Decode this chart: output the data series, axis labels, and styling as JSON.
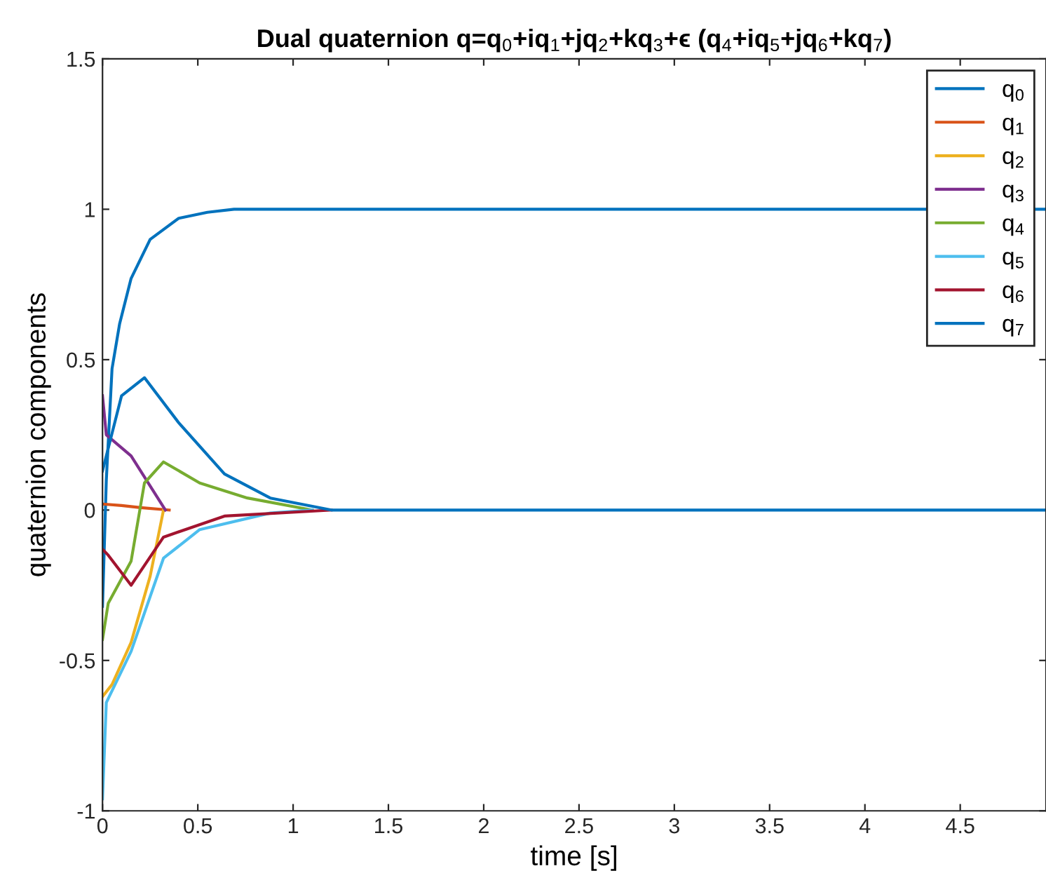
{
  "chart_data": {
    "type": "line",
    "title": "Dual quaternion q=q$_{0}$+iq$_{1}$+jq$_{2}$+kq$_{3}$+ϵ (q$_{4}$+iq$_{5}$+jq$_{6}$+kq$_{7}$)",
    "xlabel": "time [s]",
    "ylabel": "quaternion components",
    "xlim": [
      0,
      4.95
    ],
    "ylim": [
      -1,
      1.5
    ],
    "xticks": [
      0,
      0.5,
      1,
      1.5,
      2,
      2.5,
      3,
      3.5,
      4,
      4.5
    ],
    "yticks": [
      -1,
      -0.5,
      0,
      0.5,
      1,
      1.5
    ],
    "grid": false,
    "legend": "top right",
    "marker": "none",
    "line_style": "solid",
    "series": [
      {
        "name": "q$_{0}$",
        "color": "#0072bd",
        "x": [
          0,
          0.02,
          0.05,
          0.09,
          0.15,
          0.25,
          0.4,
          0.55,
          0.69,
          1,
          2,
          3,
          4,
          4.95
        ],
        "values": [
          -0.32,
          0.1,
          0.47,
          0.62,
          0.77,
          0.9,
          0.97,
          0.99,
          1,
          1,
          1,
          1,
          1,
          1
        ]
      },
      {
        "name": "q$_{1}$",
        "color": "#d95319",
        "x": [
          0,
          0.1,
          0.2,
          0.35
        ],
        "values": [
          0.02,
          0.015,
          0.008,
          0
        ]
      },
      {
        "name": "q$_{2}$",
        "color": "#edb120",
        "x": [
          0,
          0.05,
          0.15,
          0.25,
          0.32
        ],
        "values": [
          -0.62,
          -0.58,
          -0.44,
          -0.22,
          0
        ]
      },
      {
        "name": "q$_{3}$",
        "color": "#7e2f8e",
        "x": [
          0,
          0.02,
          0.15,
          0.33
        ],
        "values": [
          0.38,
          0.25,
          0.18,
          0
        ]
      },
      {
        "name": "q$_{4}$",
        "color": "#77ac30",
        "x": [
          0,
          0.03,
          0.15,
          0.22,
          0.32,
          0.51,
          0.76,
          1.1
        ],
        "values": [
          -0.43,
          -0.31,
          -0.17,
          0.09,
          0.16,
          0.09,
          0.04,
          0
        ]
      },
      {
        "name": "q$_{5}$",
        "color": "#4dbeee",
        "x": [
          0,
          0.02,
          0.15,
          0.32,
          0.51,
          0.88,
          1.1
        ],
        "values": [
          -0.96,
          -0.64,
          -0.47,
          -0.16,
          -0.065,
          -0.01,
          0
        ]
      },
      {
        "name": "q$_{6}$",
        "color": "#a2142f",
        "x": [
          0,
          0.03,
          0.15,
          0.32,
          0.64,
          1.2
        ],
        "values": [
          -0.13,
          -0.15,
          -0.25,
          -0.09,
          -0.02,
          0
        ]
      },
      {
        "name": "q$_{7}$",
        "color": "#0072bd",
        "x": [
          0,
          0.1,
          0.22,
          0.4,
          0.64,
          0.88,
          1.2,
          2,
          3,
          4,
          4.95
        ],
        "values": [
          0.13,
          0.38,
          0.44,
          0.29,
          0.12,
          0.04,
          0,
          0,
          0,
          0,
          0
        ]
      }
    ]
  }
}
